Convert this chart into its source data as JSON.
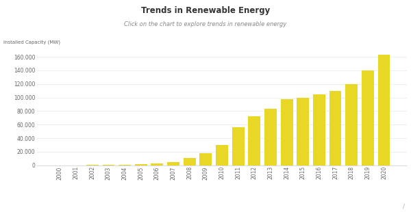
{
  "title": "Trends in Renewable Energy",
  "subtitle": "Click on the chart to explore trends in renewable energy",
  "ylabel": "Installed Capacity (MW)",
  "bar_color": "#E8D825",
  "years": [
    "2000",
    "2001",
    "2002",
    "2003",
    "2004",
    "2005",
    "2006",
    "2007",
    "2008",
    "2009",
    "2010",
    "2011",
    "2012",
    "2013",
    "2014",
    "2015",
    "2016",
    "2017",
    "2018",
    "2019",
    "2020"
  ],
  "values": [
    200,
    280,
    400,
    600,
    1300,
    1800,
    2600,
    5000,
    11000,
    18000,
    30000,
    56000,
    72000,
    83000,
    98000,
    100000,
    105000,
    110000,
    120000,
    140000,
    163000
  ],
  "background_color": "#ffffff",
  "ylim": [
    0,
    175000
  ],
  "yticks": [
    0,
    20000,
    40000,
    60000,
    80000,
    100000,
    120000,
    140000,
    160000
  ],
  "figsize": [
    6.0,
    3.1
  ],
  "dpi": 100
}
